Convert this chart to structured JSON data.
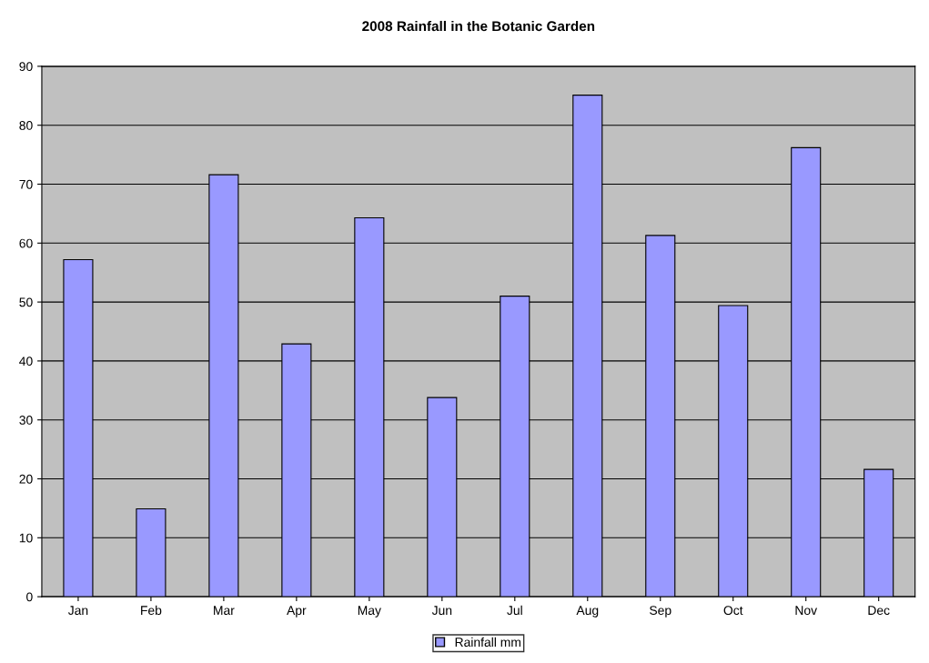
{
  "chart_data": {
    "type": "bar",
    "title": "2008 Rainfall in the Botanic Garden",
    "categories": [
      "Jan",
      "Feb",
      "Mar",
      "Apr",
      "May",
      "Jun",
      "Jul",
      "Aug",
      "Sep",
      "Oct",
      "Nov",
      "Dec"
    ],
    "series": [
      {
        "name": "Rainfall mm",
        "color": "#9999ff",
        "values": [
          57.2,
          14.9,
          71.6,
          42.9,
          64.3,
          33.8,
          51.0,
          85.1,
          61.3,
          49.4,
          76.2,
          21.6
        ]
      }
    ],
    "ylim": [
      0,
      90
    ],
    "yticks": [
      0,
      10,
      20,
      30,
      40,
      50,
      60,
      70,
      80,
      90
    ],
    "grid": "y",
    "legend": "bottom"
  }
}
